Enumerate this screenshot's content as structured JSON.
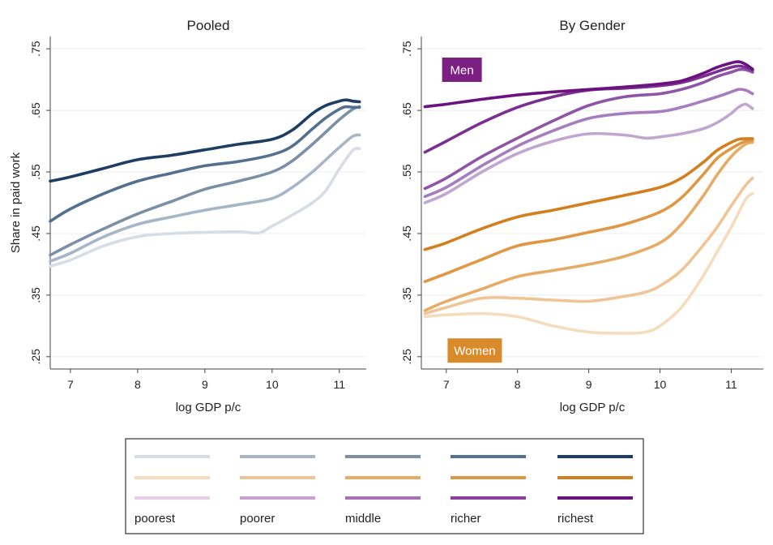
{
  "chart_data": [
    {
      "type": "line",
      "title": "Pooled",
      "xlabel": "log GDP p/c",
      "ylabel": "Share in paid work",
      "xlim": [
        6.7,
        11.4
      ],
      "ylim": [
        0.23,
        0.77
      ],
      "xticks": [
        "7",
        "8",
        "9",
        "10",
        "11"
      ],
      "yticks": [
        ".25",
        ".35",
        ".45",
        ".55",
        ".65",
        ".75"
      ],
      "series": [
        {
          "name": "poorest",
          "color": "#d6dde6",
          "x": [
            6.7,
            7.0,
            7.5,
            8.0,
            8.5,
            9.0,
            9.5,
            9.8,
            10.0,
            10.3,
            10.6,
            10.8,
            11.0,
            11.2,
            11.3
          ],
          "y": [
            0.397,
            0.407,
            0.43,
            0.445,
            0.45,
            0.452,
            0.453,
            0.451,
            0.462,
            0.48,
            0.5,
            0.52,
            0.555,
            0.585,
            0.588
          ]
        },
        {
          "name": "poorer",
          "color": "#a7b6c7",
          "x": [
            6.7,
            7.0,
            7.5,
            8.0,
            8.5,
            9.0,
            9.5,
            10.0,
            10.3,
            10.6,
            10.8,
            11.0,
            11.2,
            11.3
          ],
          "y": [
            0.405,
            0.418,
            0.445,
            0.465,
            0.477,
            0.488,
            0.497,
            0.507,
            0.525,
            0.55,
            0.57,
            0.59,
            0.608,
            0.61
          ]
        },
        {
          "name": "middle",
          "color": "#7b90a7",
          "x": [
            6.7,
            7.0,
            7.5,
            8.0,
            8.5,
            9.0,
            9.5,
            10.0,
            10.3,
            10.6,
            10.8,
            11.0,
            11.2,
            11.3
          ],
          "y": [
            0.415,
            0.432,
            0.458,
            0.482,
            0.502,
            0.522,
            0.535,
            0.55,
            0.568,
            0.595,
            0.615,
            0.635,
            0.652,
            0.656
          ]
        },
        {
          "name": "richer",
          "color": "#53708e",
          "x": [
            6.7,
            7.0,
            7.5,
            8.0,
            8.5,
            9.0,
            9.5,
            10.0,
            10.3,
            10.6,
            10.8,
            11.0,
            11.1,
            11.2,
            11.3
          ],
          "y": [
            0.47,
            0.49,
            0.515,
            0.535,
            0.548,
            0.56,
            0.567,
            0.578,
            0.592,
            0.62,
            0.638,
            0.652,
            0.656,
            0.655,
            0.655
          ]
        },
        {
          "name": "richest",
          "color": "#1e3d62",
          "x": [
            6.7,
            7.0,
            7.5,
            8.0,
            8.5,
            9.0,
            9.5,
            10.0,
            10.3,
            10.6,
            10.8,
            11.0,
            11.1,
            11.2,
            11.3
          ],
          "y": [
            0.535,
            0.542,
            0.556,
            0.57,
            0.577,
            0.586,
            0.595,
            0.603,
            0.618,
            0.645,
            0.658,
            0.665,
            0.667,
            0.665,
            0.664
          ]
        }
      ]
    },
    {
      "type": "line",
      "title": "By Gender",
      "xlabel": "log GDP p/c",
      "ylabel": "",
      "xlim": [
        6.65,
        11.45
      ],
      "ylim": [
        0.23,
        0.77
      ],
      "xticks": [
        "7",
        "8",
        "9",
        "10",
        "11"
      ],
      "yticks": [
        ".25",
        ".35",
        ".45",
        ".55",
        ".65",
        ".75"
      ],
      "annotations": [
        {
          "text": "Men",
          "color": "#7b1f83",
          "x": 7.22,
          "y": 0.716
        },
        {
          "text": "Women",
          "color": "#d98a2b",
          "x": 7.4,
          "y": 0.26
        }
      ],
      "series": [
        {
          "name": "Men poorest",
          "color": "#c1a6cf",
          "x": [
            6.7,
            7.0,
            7.5,
            8.0,
            8.5,
            9.0,
            9.5,
            9.8,
            10.0,
            10.3,
            10.6,
            10.8,
            11.0,
            11.1,
            11.2,
            11.3
          ],
          "y": [
            0.5,
            0.515,
            0.55,
            0.58,
            0.6,
            0.612,
            0.61,
            0.605,
            0.607,
            0.612,
            0.62,
            0.63,
            0.645,
            0.655,
            0.66,
            0.653
          ]
        },
        {
          "name": "Men poorer",
          "color": "#a67ebd",
          "x": [
            6.7,
            7.0,
            7.5,
            8.0,
            8.5,
            9.0,
            9.5,
            10.0,
            10.3,
            10.6,
            10.8,
            11.0,
            11.1,
            11.2,
            11.3
          ],
          "y": [
            0.51,
            0.525,
            0.56,
            0.592,
            0.617,
            0.637,
            0.645,
            0.648,
            0.655,
            0.665,
            0.672,
            0.68,
            0.684,
            0.683,
            0.677
          ]
        },
        {
          "name": "Men middle",
          "color": "#8e55a6",
          "x": [
            6.7,
            7.0,
            7.5,
            8.0,
            8.5,
            9.0,
            9.5,
            10.0,
            10.3,
            10.6,
            10.8,
            11.0,
            11.1,
            11.2,
            11.3
          ],
          "y": [
            0.523,
            0.54,
            0.575,
            0.605,
            0.633,
            0.658,
            0.672,
            0.677,
            0.684,
            0.695,
            0.705,
            0.712,
            0.716,
            0.716,
            0.712
          ]
        },
        {
          "name": "Men richer",
          "color": "#7a2f91",
          "x": [
            6.7,
            7.0,
            7.5,
            8.0,
            8.5,
            9.0,
            9.5,
            10.0,
            10.3,
            10.6,
            10.8,
            11.0,
            11.1,
            11.2,
            11.3
          ],
          "y": [
            0.582,
            0.6,
            0.63,
            0.655,
            0.672,
            0.683,
            0.686,
            0.69,
            0.695,
            0.705,
            0.713,
            0.72,
            0.722,
            0.72,
            0.715
          ]
        },
        {
          "name": "Men richest",
          "color": "#6a127e",
          "x": [
            6.7,
            7.0,
            7.5,
            8.0,
            8.5,
            9.0,
            9.5,
            10.0,
            10.3,
            10.6,
            10.8,
            11.0,
            11.1,
            11.2,
            11.3
          ],
          "y": [
            0.656,
            0.66,
            0.668,
            0.675,
            0.68,
            0.684,
            0.688,
            0.693,
            0.698,
            0.71,
            0.72,
            0.727,
            0.729,
            0.725,
            0.717
          ]
        },
        {
          "name": "Women poorest",
          "color": "#f5dcbd",
          "x": [
            6.7,
            7.0,
            7.5,
            8.0,
            8.5,
            9.0,
            9.5,
            9.8,
            10.0,
            10.3,
            10.6,
            10.8,
            11.0,
            11.2,
            11.3
          ],
          "y": [
            0.315,
            0.318,
            0.32,
            0.315,
            0.3,
            0.29,
            0.288,
            0.29,
            0.3,
            0.33,
            0.38,
            0.42,
            0.46,
            0.505,
            0.515
          ]
        },
        {
          "name": "Women poorer",
          "color": "#efc595",
          "x": [
            6.7,
            7.0,
            7.5,
            8.0,
            8.5,
            9.0,
            9.5,
            9.8,
            10.0,
            10.3,
            10.6,
            10.8,
            11.0,
            11.2,
            11.3
          ],
          "y": [
            0.32,
            0.33,
            0.345,
            0.345,
            0.342,
            0.34,
            0.348,
            0.355,
            0.365,
            0.39,
            0.43,
            0.46,
            0.495,
            0.528,
            0.54
          ]
        },
        {
          "name": "Women middle",
          "color": "#e7ab66",
          "x": [
            6.7,
            7.0,
            7.5,
            8.0,
            8.5,
            9.0,
            9.5,
            10.0,
            10.3,
            10.6,
            10.8,
            11.0,
            11.2,
            11.3
          ],
          "y": [
            0.325,
            0.34,
            0.36,
            0.38,
            0.39,
            0.4,
            0.413,
            0.435,
            0.465,
            0.51,
            0.545,
            0.575,
            0.595,
            0.598
          ]
        },
        {
          "name": "Women richer",
          "color": "#df9744",
          "x": [
            6.7,
            7.0,
            7.5,
            8.0,
            8.5,
            9.0,
            9.5,
            10.0,
            10.3,
            10.6,
            10.8,
            11.0,
            11.2,
            11.3
          ],
          "y": [
            0.372,
            0.385,
            0.408,
            0.43,
            0.44,
            0.452,
            0.465,
            0.485,
            0.508,
            0.545,
            0.572,
            0.588,
            0.6,
            0.602
          ]
        },
        {
          "name": "Women richest",
          "color": "#d37f1d",
          "x": [
            6.7,
            7.0,
            7.5,
            8.0,
            8.5,
            9.0,
            9.5,
            10.0,
            10.3,
            10.6,
            10.8,
            11.0,
            11.1,
            11.2,
            11.3
          ],
          "y": [
            0.424,
            0.435,
            0.458,
            0.477,
            0.488,
            0.5,
            0.512,
            0.525,
            0.54,
            0.565,
            0.585,
            0.598,
            0.603,
            0.604,
            0.604
          ]
        }
      ]
    }
  ],
  "legend": {
    "labels": [
      "poorest",
      "poorer",
      "middle",
      "richer",
      "richest"
    ],
    "rows": [
      [
        "#d6dde6",
        "#a7b6c7",
        "#7b90a7",
        "#53708e",
        "#1e3d62"
      ],
      [
        "#f5dcbd",
        "#efc595",
        "#e7ab66",
        "#df9744",
        "#d37f1d"
      ],
      [
        "#e8cde9",
        "#c9a1d0",
        "#a870b7",
        "#8a3f9f",
        "#6a127e"
      ]
    ]
  }
}
